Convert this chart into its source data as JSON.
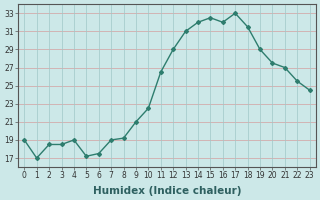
{
  "x": [
    0,
    1,
    2,
    3,
    4,
    5,
    6,
    7,
    8,
    9,
    10,
    11,
    12,
    13,
    14,
    15,
    16,
    17,
    18,
    19,
    20,
    21,
    22,
    23
  ],
  "y": [
    19,
    17,
    18.5,
    18.5,
    19,
    17.2,
    17.5,
    19,
    19.2,
    21,
    22.5,
    26.5,
    29,
    31,
    32,
    32.5,
    32,
    33,
    31.5,
    29,
    27.5,
    27,
    25.5,
    24.5
  ],
  "line_color": "#2e7d6e",
  "marker": "D",
  "marker_size": 2.0,
  "bg_color": "#cce8e8",
  "grid_color_h": "#d4a0a0",
  "grid_color_v": "#a0c8c8",
  "xlabel": "Humidex (Indice chaleur)",
  "xlim": [
    -0.5,
    23.5
  ],
  "ylim": [
    16,
    34
  ],
  "yticks": [
    17,
    19,
    21,
    23,
    25,
    27,
    29,
    31,
    33
  ],
  "xticks": [
    0,
    1,
    2,
    3,
    4,
    5,
    6,
    7,
    8,
    9,
    10,
    11,
    12,
    13,
    14,
    15,
    16,
    17,
    18,
    19,
    20,
    21,
    22,
    23
  ],
  "tick_fontsize": 5.5,
  "xlabel_fontsize": 7.5,
  "linewidth": 1.0
}
